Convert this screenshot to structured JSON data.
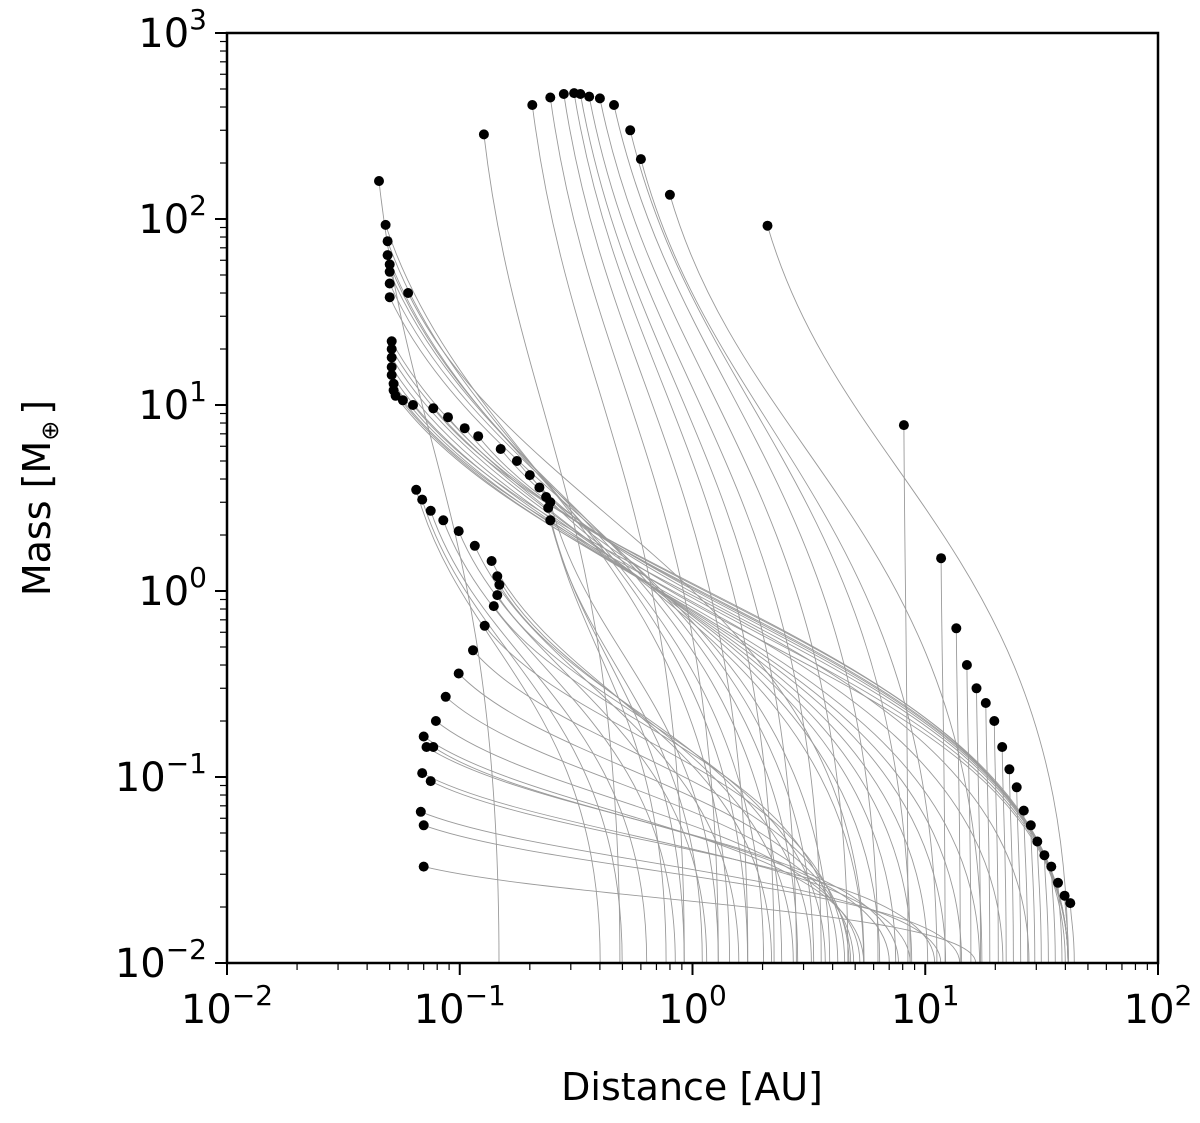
{
  "chart_data": {
    "type": "scatter",
    "xlabel": "Distance [AU]",
    "ylabel_main": "Mass [M",
    "ylabel_sub": "⊕",
    "ylabel_end": "]",
    "xscale": "log",
    "yscale": "log",
    "xlim": [
      0.01,
      100
    ],
    "ylim": [
      0.01,
      1000
    ],
    "x_ticks": [
      {
        "value": 0.01,
        "base": "10",
        "exp": "−2"
      },
      {
        "value": 0.1,
        "base": "10",
        "exp": "−1"
      },
      {
        "value": 1,
        "base": "10",
        "exp": "0"
      },
      {
        "value": 10,
        "base": "10",
        "exp": "1"
      },
      {
        "value": 100,
        "base": "10",
        "exp": "2"
      }
    ],
    "y_ticks": [
      {
        "value": 0.01,
        "base": "10",
        "exp": "−2"
      },
      {
        "value": 0.1,
        "base": "10",
        "exp": "−1"
      },
      {
        "value": 1,
        "base": "10",
        "exp": "0"
      },
      {
        "value": 10,
        "base": "10",
        "exp": "1"
      },
      {
        "value": 100,
        "base": "10",
        "exp": "2"
      },
      {
        "value": 1000,
        "base": "10",
        "exp": "3"
      }
    ],
    "grid": false,
    "marker_color": "#000000",
    "track_color": "#9a9a9a",
    "final_points": [
      [
        0.045,
        160
      ],
      [
        0.127,
        285
      ],
      [
        0.205,
        410
      ],
      [
        0.245,
        450
      ],
      [
        0.28,
        470
      ],
      [
        0.31,
        475
      ],
      [
        0.33,
        470
      ],
      [
        0.36,
        455
      ],
      [
        0.4,
        445
      ],
      [
        0.46,
        410
      ],
      [
        0.54,
        300
      ],
      [
        0.6,
        210
      ],
      [
        0.8,
        135
      ],
      [
        2.1,
        92
      ],
      [
        0.048,
        93
      ],
      [
        0.049,
        76
      ],
      [
        0.049,
        64
      ],
      [
        0.05,
        57
      ],
      [
        0.05,
        52
      ],
      [
        0.05,
        45
      ],
      [
        0.05,
        38
      ],
      [
        0.06,
        40
      ],
      [
        0.051,
        22
      ],
      [
        0.051,
        20
      ],
      [
        0.051,
        18
      ],
      [
        0.051,
        16
      ],
      [
        0.051,
        14.5
      ],
      [
        0.052,
        13
      ],
      [
        0.052,
        12
      ],
      [
        0.053,
        11.2
      ],
      [
        0.057,
        10.6
      ],
      [
        0.063,
        10.0
      ],
      [
        0.077,
        9.6
      ],
      [
        0.089,
        8.6
      ],
      [
        0.105,
        7.5
      ],
      [
        0.12,
        6.8
      ],
      [
        0.15,
        5.8
      ],
      [
        0.176,
        5.0
      ],
      [
        0.2,
        4.2
      ],
      [
        0.22,
        3.6
      ],
      [
        0.235,
        3.2
      ],
      [
        0.24,
        2.8
      ],
      [
        0.245,
        2.4
      ],
      [
        0.245,
        3.0
      ],
      [
        0.065,
        3.5
      ],
      [
        0.069,
        3.1
      ],
      [
        0.075,
        2.7
      ],
      [
        0.085,
        2.4
      ],
      [
        0.099,
        2.1
      ],
      [
        0.116,
        1.75
      ],
      [
        0.137,
        1.45
      ],
      [
        0.145,
        1.2
      ],
      [
        0.148,
        1.08
      ],
      [
        0.145,
        0.95
      ],
      [
        0.14,
        0.83
      ],
      [
        0.128,
        0.65
      ],
      [
        0.114,
        0.48
      ],
      [
        0.099,
        0.36
      ],
      [
        0.087,
        0.27
      ],
      [
        0.079,
        0.2
      ],
      [
        0.07,
        0.165
      ],
      [
        0.077,
        0.145
      ],
      [
        0.072,
        0.145
      ],
      [
        0.069,
        0.105
      ],
      [
        0.075,
        0.095
      ],
      [
        0.068,
        0.065
      ],
      [
        0.07,
        0.055
      ],
      [
        0.07,
        0.033
      ],
      [
        8.1,
        7.8
      ],
      [
        11.7,
        1.5
      ],
      [
        13.6,
        0.63
      ],
      [
        15.1,
        0.4
      ],
      [
        16.6,
        0.3
      ],
      [
        18.2,
        0.25
      ],
      [
        19.8,
        0.2
      ],
      [
        21.4,
        0.145
      ],
      [
        23.0,
        0.11
      ],
      [
        24.7,
        0.088
      ],
      [
        26.5,
        0.066
      ],
      [
        28.4,
        0.055
      ],
      [
        30.3,
        0.045
      ],
      [
        32.5,
        0.038
      ],
      [
        34.8,
        0.033
      ],
      [
        37.2,
        0.027
      ],
      [
        39.7,
        0.023
      ],
      [
        42.0,
        0.021
      ]
    ]
  }
}
